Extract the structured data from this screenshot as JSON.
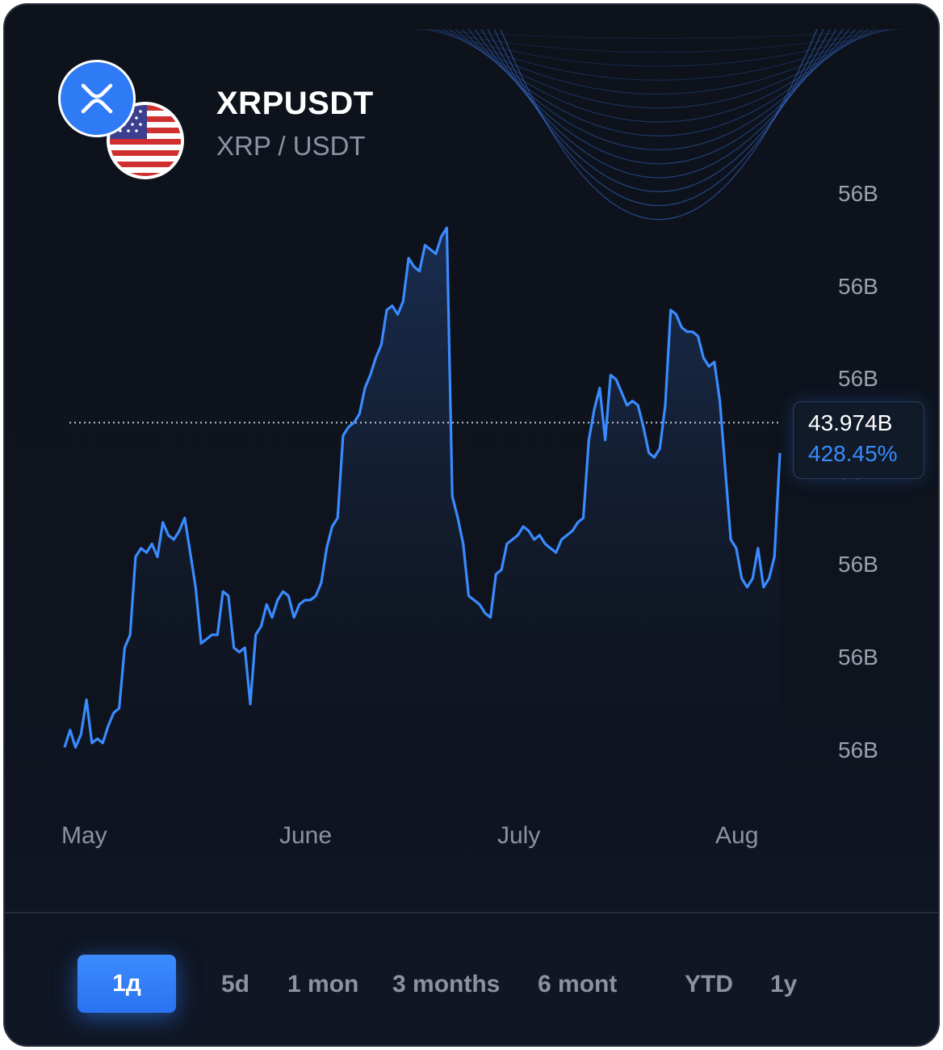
{
  "header": {
    "symbol": "XRPUSDT",
    "pair": "XRP / USDT",
    "coin_icon": "xrp-logo-icon",
    "flag_icon": "us-flag-icon"
  },
  "colors": {
    "accent": "#2f7bf5",
    "line": "#3a8bff",
    "background": "#0d121b",
    "muted_text": "#8c93a0"
  },
  "price_tag": {
    "value": "43.974B",
    "change": "428.45%"
  },
  "tabs": [
    {
      "label": "1д",
      "active": true
    },
    {
      "label": "5d",
      "active": false
    },
    {
      "label": "1 mon",
      "active": false
    },
    {
      "label": "3 months",
      "active": false
    },
    {
      "label": "6 mont",
      "active": false
    },
    {
      "label": "YTD",
      "active": false
    },
    {
      "label": "1y",
      "active": false
    }
  ],
  "chart_data": {
    "type": "area",
    "title": "",
    "xlabel": "",
    "ylabel": "",
    "x_tick_labels": [
      "May",
      "June",
      "July",
      "Aug"
    ],
    "y_tick_labels": [
      "56B",
      "56B",
      "56B",
      "56B",
      "56B",
      "56B",
      "56B"
    ],
    "grid": false,
    "legend": "none",
    "series": [
      {
        "values": [
          11.2,
          11.6,
          11.2,
          11.5,
          12.3,
          11.3,
          11.4,
          11.3,
          11.7,
          12.0,
          12.1,
          13.5,
          13.8,
          15.6,
          15.8,
          15.7,
          15.9,
          15.6,
          16.4,
          16.1,
          16.0,
          16.2,
          16.5,
          15.7,
          14.9,
          13.6,
          13.7,
          13.8,
          13.8,
          14.8,
          14.7,
          13.5,
          13.4,
          13.5,
          12.2,
          13.8,
          14.0,
          14.5,
          14.2,
          14.6,
          14.8,
          14.7,
          14.2,
          14.5,
          14.6,
          14.6,
          14.7,
          15.0,
          15.8,
          16.3,
          16.5,
          18.4,
          18.6,
          18.7,
          18.9,
          19.5,
          19.8,
          20.2,
          20.5,
          21.3,
          21.4,
          21.2,
          21.5,
          22.5,
          22.3,
          22.2,
          22.8,
          22.7,
          22.6,
          23.0,
          23.2,
          17.0,
          16.5,
          15.9,
          14.7,
          14.6,
          14.5,
          14.3,
          14.2,
          15.2,
          15.3,
          15.9,
          16.0,
          16.1,
          16.3,
          16.2,
          16.0,
          16.1,
          15.9,
          15.8,
          15.7,
          16.0,
          16.1,
          16.2,
          16.4,
          16.5,
          18.3,
          19.0,
          19.5,
          18.3,
          19.8,
          19.7,
          19.4,
          19.1,
          19.2,
          19.1,
          18.6,
          18.0,
          17.9,
          18.1,
          19.1,
          21.3,
          21.2,
          20.9,
          20.8,
          20.8,
          20.7,
          20.2,
          20.0,
          20.1,
          19.2,
          17.6,
          16.0,
          15.8,
          15.1,
          14.9,
          15.1,
          15.8,
          14.9,
          15.1,
          15.6,
          18.0
        ]
      }
    ],
    "reference_line_value": 18.7
  }
}
